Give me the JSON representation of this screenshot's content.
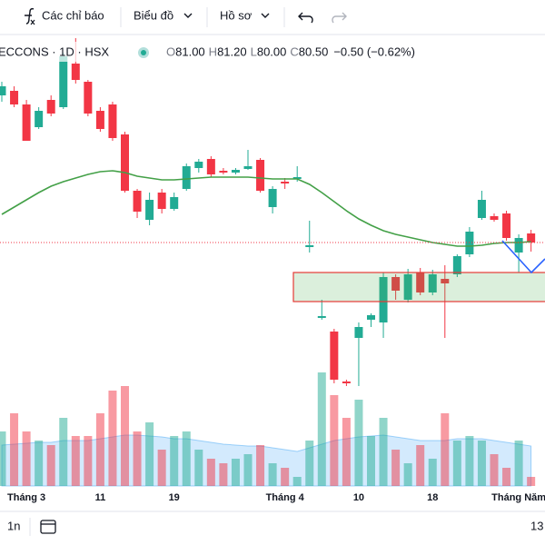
{
  "toolbar": {
    "indicators": "Các chỉ báo",
    "chart": "Biểu đồ",
    "profile": "Hồ sơ"
  },
  "bottom_bar": {
    "range": "1n",
    "time": "13"
  },
  "chart_data": {
    "type": "candlestick",
    "symbol": "ECCONS · 1D · HSX",
    "legend": {
      "labels": [
        "O",
        "H",
        "L",
        "C"
      ],
      "values": [
        "81.00",
        "81.20",
        "80.00",
        "80.50"
      ],
      "change": "−0.50 (−0.62%)"
    },
    "categories": [
      null,
      null,
      "Tháng 3",
      null,
      null,
      null,
      null,
      null,
      "11",
      null,
      null,
      null,
      null,
      null,
      "19",
      null,
      null,
      null,
      null,
      null,
      null,
      null,
      null,
      "Tháng 4",
      null,
      null,
      null,
      null,
      null,
      "10",
      null,
      null,
      null,
      null,
      null,
      "18",
      null,
      null,
      null,
      null,
      null,
      null,
      "Tháng Năm",
      null
    ],
    "open": [
      88.6,
      88.85,
      88.1,
      86.85,
      88.35,
      87.95,
      90.35,
      89.35,
      87.75,
      88.1,
      86.45,
      83.35,
      81.75,
      83.25,
      82.35,
      83.45,
      84.6,
      85.1,
      84.45,
      84.35,
      84.55,
      85.05,
      82.45,
      83.85,
      84.0,
      80.25,
      76.35,
      75.6,
      72.85,
      75.25,
      76.25,
      76.1,
      78.6,
      77.35,
      78.85,
      77.75,
      78.5,
      78.75,
      79.85,
      81.85,
      81.95,
      82.1,
      79.95,
      81.0
    ],
    "high": [
      89.35,
      89.1,
      88.35,
      87.95,
      88.6,
      90.95,
      91.75,
      89.45,
      87.95,
      88.25,
      86.6,
      83.45,
      83.25,
      83.45,
      83.25,
      84.85,
      85.1,
      85.25,
      84.6,
      84.6,
      85.6,
      85.15,
      83.6,
      84.05,
      84.7,
      81.7,
      77.35,
      75.75,
      72.95,
      76.1,
      76.6,
      78.85,
      78.75,
      79.05,
      79.1,
      79.0,
      79.25,
      79.85,
      81.35,
      83.35,
      82.1,
      82.25,
      80.95,
      81.2
    ],
    "low": [
      88.25,
      87.95,
      86.1,
      86.75,
      87.45,
      87.85,
      89.25,
      87.45,
      86.6,
      86.1,
      83.25,
      81.85,
      81.45,
      82.1,
      82.25,
      83.35,
      84.35,
      84.1,
      84.25,
      84.25,
      84.5,
      83.25,
      82.1,
      83.45,
      83.85,
      79.95,
      76.25,
      72.75,
      72.6,
      72.6,
      75.85,
      75.25,
      77.35,
      77.2,
      77.6,
      77.6,
      75.25,
      78.6,
      79.7,
      81.75,
      81.65,
      80.6,
      78.85,
      80.0
    ],
    "close": [
      89.1,
      88.1,
      86.1,
      87.75,
      87.6,
      90.75,
      89.45,
      87.6,
      86.75,
      86.25,
      83.35,
      82.2,
      82.85,
      82.35,
      83.0,
      84.7,
      84.95,
      84.25,
      84.35,
      84.5,
      84.7,
      83.35,
      83.45,
      83.75,
      84.1,
      80.35,
      76.45,
      72.95,
      72.75,
      75.85,
      76.5,
      78.6,
      77.85,
      78.75,
      77.75,
      78.75,
      78.25,
      79.75,
      81.1,
      82.85,
      81.75,
      80.75,
      80.75,
      80.5
    ],
    "volume": [
      0.6,
      0.8,
      0.6,
      0.5,
      0.45,
      0.75,
      0.55,
      0.55,
      0.8,
      1.05,
      1.1,
      0.6,
      0.7,
      0.4,
      0.55,
      0.6,
      0.4,
      0.3,
      0.25,
      0.3,
      0.35,
      0.45,
      0.25,
      0.2,
      0.1,
      0.5,
      1.25,
      1.0,
      0.75,
      0.95,
      0.55,
      0.75,
      0.4,
      0.25,
      0.45,
      0.3,
      0.8,
      0.5,
      0.55,
      0.5,
      0.35,
      0.2,
      0.5,
      0.1
    ],
    "volume_ma": [
      0.45,
      0.46,
      0.47,
      0.48,
      0.48,
      0.5,
      0.5,
      0.5,
      0.52,
      0.54,
      0.56,
      0.56,
      0.55,
      0.54,
      0.52,
      0.52,
      0.5,
      0.48,
      0.46,
      0.45,
      0.44,
      0.44,
      0.42,
      0.4,
      0.38,
      0.42,
      0.46,
      0.5,
      0.52,
      0.54,
      0.55,
      0.56,
      0.54,
      0.52,
      0.5,
      0.5,
      0.5,
      0.52,
      0.52,
      0.52,
      0.5,
      0.48,
      0.46,
      0.44
    ],
    "ma": [
      82.05,
      82.45,
      82.85,
      83.25,
      83.6,
      83.85,
      84.05,
      84.25,
      84.4,
      84.45,
      84.35,
      84.15,
      84.05,
      83.95,
      83.95,
      84.0,
      84.05,
      84.1,
      84.1,
      84.1,
      84.1,
      84.05,
      84.0,
      84.0,
      84.0,
      83.7,
      83.25,
      82.75,
      82.25,
      81.8,
      81.45,
      81.15,
      80.95,
      80.8,
      80.65,
      80.5,
      80.4,
      80.3,
      80.3,
      80.35,
      80.45,
      80.5,
      80.5,
      80.55
    ],
    "ylim": [
      72.0,
      91.85
    ],
    "volume_lim": [
      0,
      1.5
    ],
    "up_color": "#22ab94",
    "down_color": "#f23645",
    "ma_color": "#43a047",
    "volume_ma_color": "#2196f3"
  }
}
